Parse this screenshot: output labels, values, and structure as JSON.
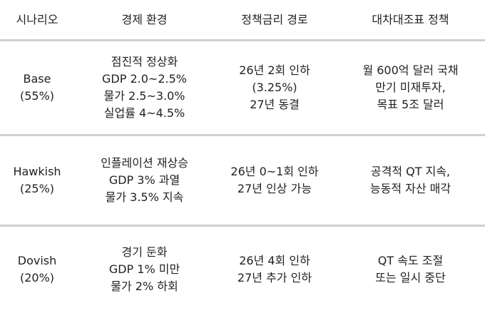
{
  "headers": [
    "시나리오",
    "경제 환경",
    "정책금리 경로",
    "대차대조표 정책"
  ],
  "rows": [
    {
      "scenario": [
        "Base",
        "(55%)"
      ],
      "economy": [
        "점진적 정상화",
        "GDP 2.0~2.5%",
        "물가 2.5~3.0%",
        "실업률 4~4.5%"
      ],
      "rate_path": [
        "26년 2회 인하",
        "(3.25%)",
        "27년 동결"
      ],
      "balance_sheet": [
        "월 600억 달러 국채",
        "만기 미재투자,",
        "목표 5조 달러"
      ]
    },
    {
      "scenario": [
        "Hawkish",
        "(25%)"
      ],
      "economy": [
        "인플레이션 재상승",
        "GDP 3% 과열",
        "물가 3.5% 지속"
      ],
      "rate_path": [
        "26년 0~1회 인하",
        "27년 인상 가능"
      ],
      "balance_sheet": [
        "공격적 QT 지속,",
        "능동적 자산 매각"
      ]
    },
    {
      "scenario": [
        "Dovish",
        "(20%)"
      ],
      "economy": [
        "경기 둔화",
        "GDP 1% 미만",
        "물가 2% 하회"
      ],
      "rate_path": [
        "26년 4회 인하",
        "27년 추가 인하"
      ],
      "balance_sheet": [
        "QT 속도 조절",
        "또는 일시 중단"
      ]
    }
  ]
}
